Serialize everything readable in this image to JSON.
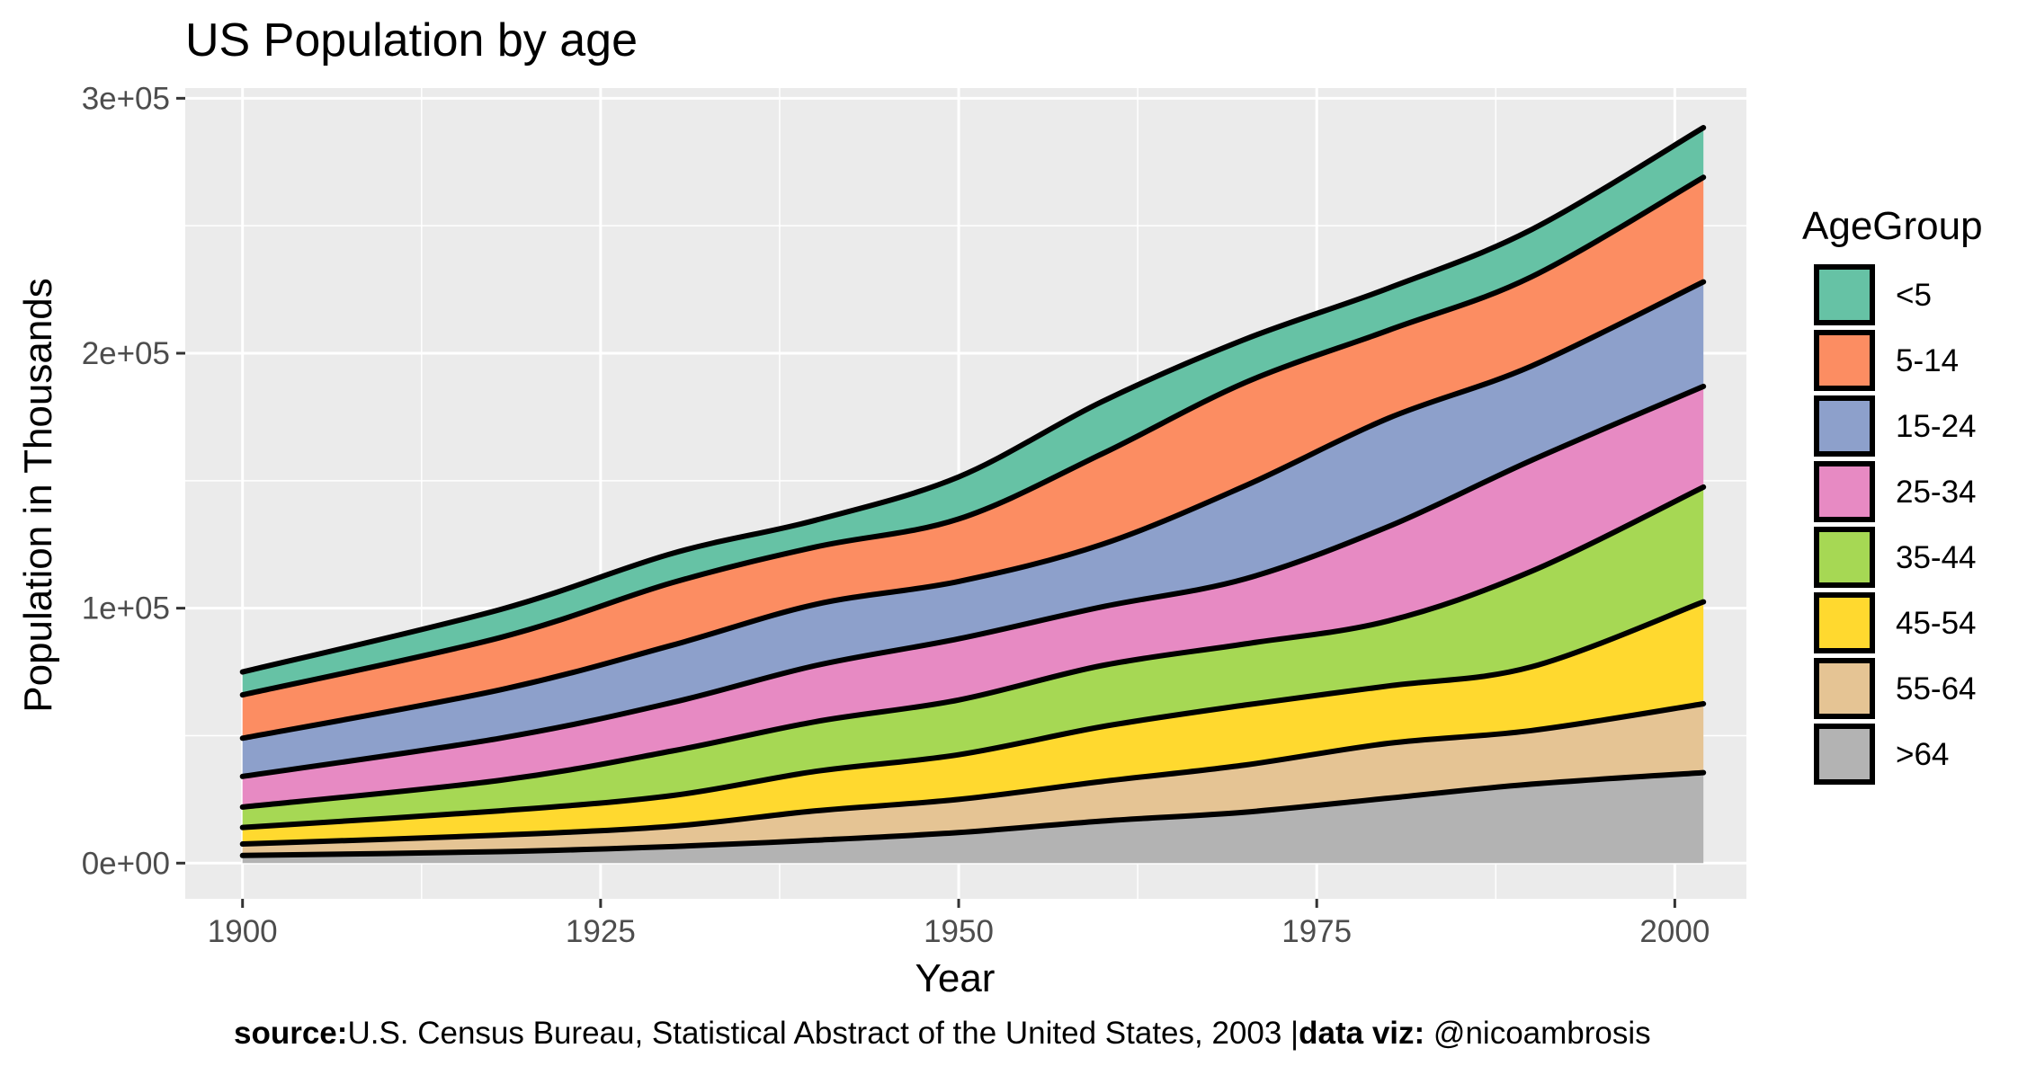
{
  "chart_data": {
    "type": "area",
    "stacked": true,
    "title": "US Population by age",
    "xlabel": "Year",
    "ylabel": "Population in Thousands",
    "xlim": [
      1896,
      2005
    ],
    "ylim": [
      -14000,
      304000
    ],
    "x_ticks": [
      1900,
      1925,
      1950,
      1975,
      2000
    ],
    "x_tick_labels": [
      "1900",
      "1925",
      "1950",
      "1975",
      "2000"
    ],
    "y_ticks": [
      0,
      100000,
      200000,
      300000
    ],
    "y_tick_labels": [
      "0e+00",
      "1e+05",
      "2e+05",
      "3e+05"
    ],
    "grid": true,
    "legend": {
      "title": "AgeGroup",
      "position": "right",
      "entries": [
        "<5",
        "5-14",
        "15-24",
        "25-34",
        "35-44",
        "45-54",
        "55-64",
        ">64"
      ]
    },
    "x": [
      1900,
      1918,
      1930,
      1940,
      1950,
      1960,
      1970,
      1980,
      1990,
      2002
    ],
    "series": [
      {
        "name": ">64",
        "color": "#b3b3b3",
        "values": [
          3000,
          4500,
          6500,
          9000,
          12000,
          16500,
          20000,
          25500,
          31000,
          35500
        ]
      },
      {
        "name": "55-64",
        "color": "#e5c494",
        "values": [
          4500,
          6500,
          8000,
          11500,
          13000,
          15500,
          18500,
          21500,
          21000,
          27000
        ]
      },
      {
        "name": "45-54",
        "color": "#ffd92f",
        "values": [
          6500,
          9500,
          12000,
          15500,
          17500,
          21500,
          23500,
          22500,
          25000,
          40000
        ]
      },
      {
        "name": "35-44",
        "color": "#a6d854",
        "values": [
          8000,
          12000,
          17500,
          19500,
          21500,
          24000,
          24000,
          25500,
          37500,
          45000
        ]
      },
      {
        "name": "25-34",
        "color": "#e78ac3",
        "values": [
          12000,
          16500,
          19000,
          22000,
          24000,
          23000,
          25500,
          37000,
          43500,
          39500
        ]
      },
      {
        "name": "15-24",
        "color": "#8da0cb",
        "values": [
          15000,
          19000,
          22500,
          24000,
          22500,
          24500,
          36500,
          42500,
          37000,
          41000
        ]
      },
      {
        "name": "5-14",
        "color": "#fc8d62",
        "values": [
          17000,
          20500,
          24500,
          22500,
          24500,
          35500,
          40500,
          34500,
          35000,
          41000
        ]
      },
      {
        "name": "<5",
        "color": "#66c2a5",
        "values": [
          9000,
          11000,
          11500,
          10500,
          16500,
          20500,
          17000,
          16500,
          18500,
          19500
        ]
      }
    ]
  },
  "caption": {
    "source_label": "source:",
    "source_text": "U.S. Census Bureau, Statistical Abstract of the United States, 2003 |",
    "viz_label": "data viz:",
    "viz_text": " @nicoambrosis"
  }
}
